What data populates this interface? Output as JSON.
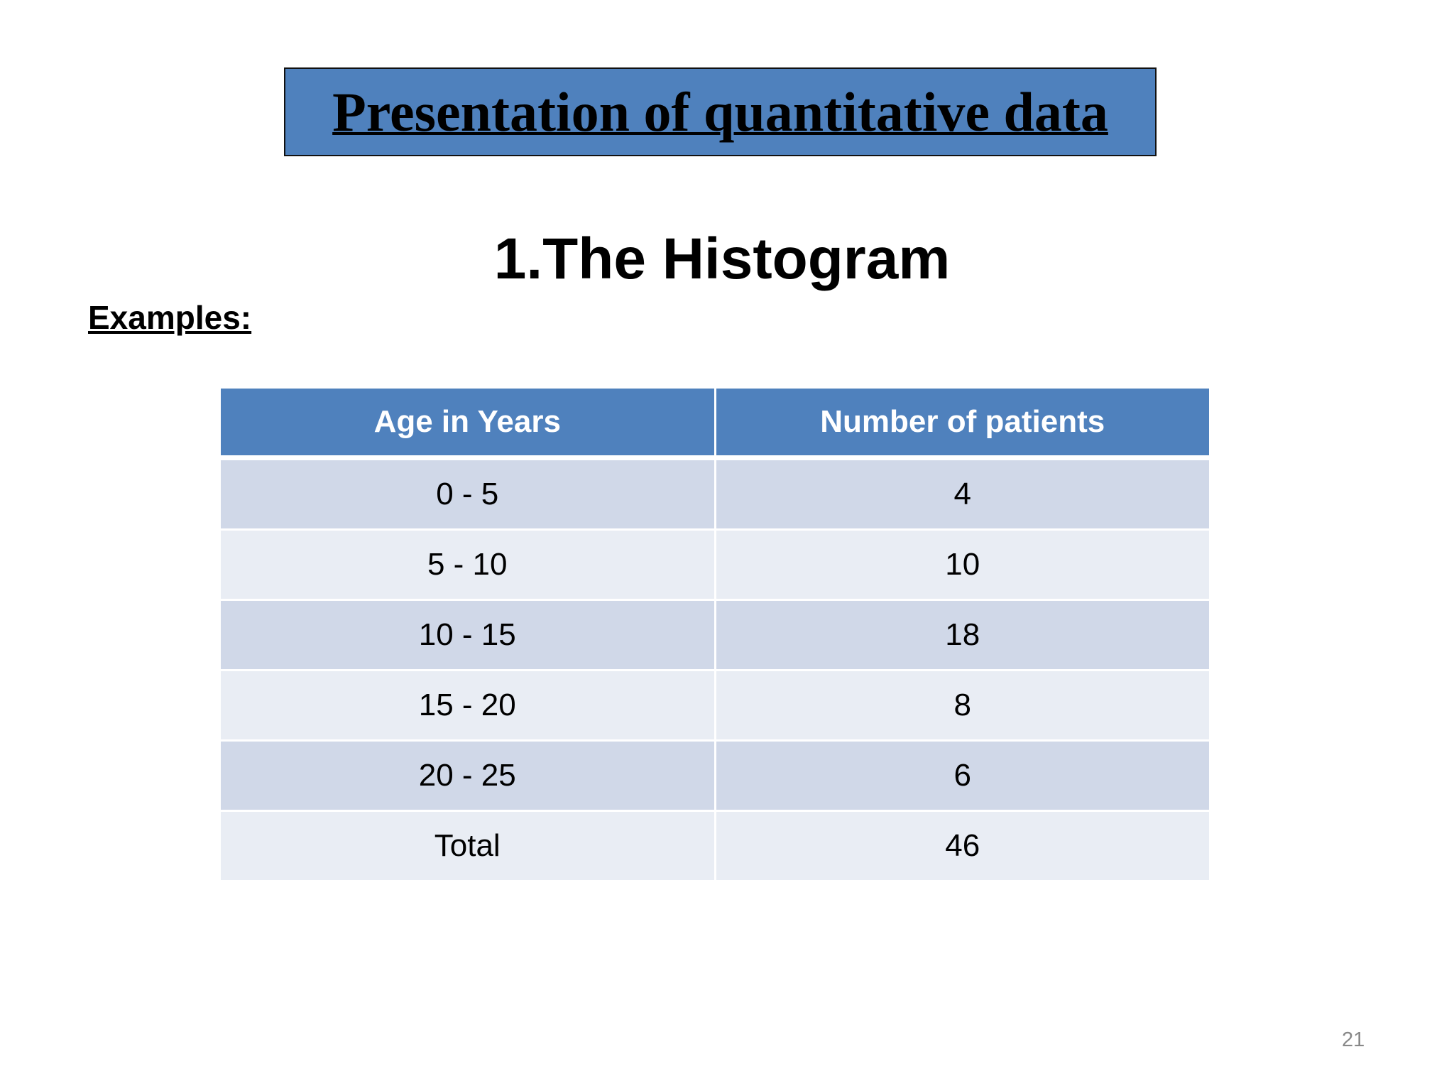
{
  "header": {
    "title": "Presentation of quantitative data"
  },
  "subtitle": "1.The Histogram",
  "label": "Examples:",
  "table": {
    "columns": [
      "Age in Years",
      "Number of patients"
    ],
    "rows": [
      [
        "0 - 5",
        4
      ],
      [
        "5 - 10",
        10
      ],
      [
        "10 - 15",
        18
      ],
      [
        "15 - 20",
        8
      ],
      [
        "20 - 25",
        6
      ],
      [
        "Total",
        46
      ]
    ]
  },
  "page_number": 21
}
